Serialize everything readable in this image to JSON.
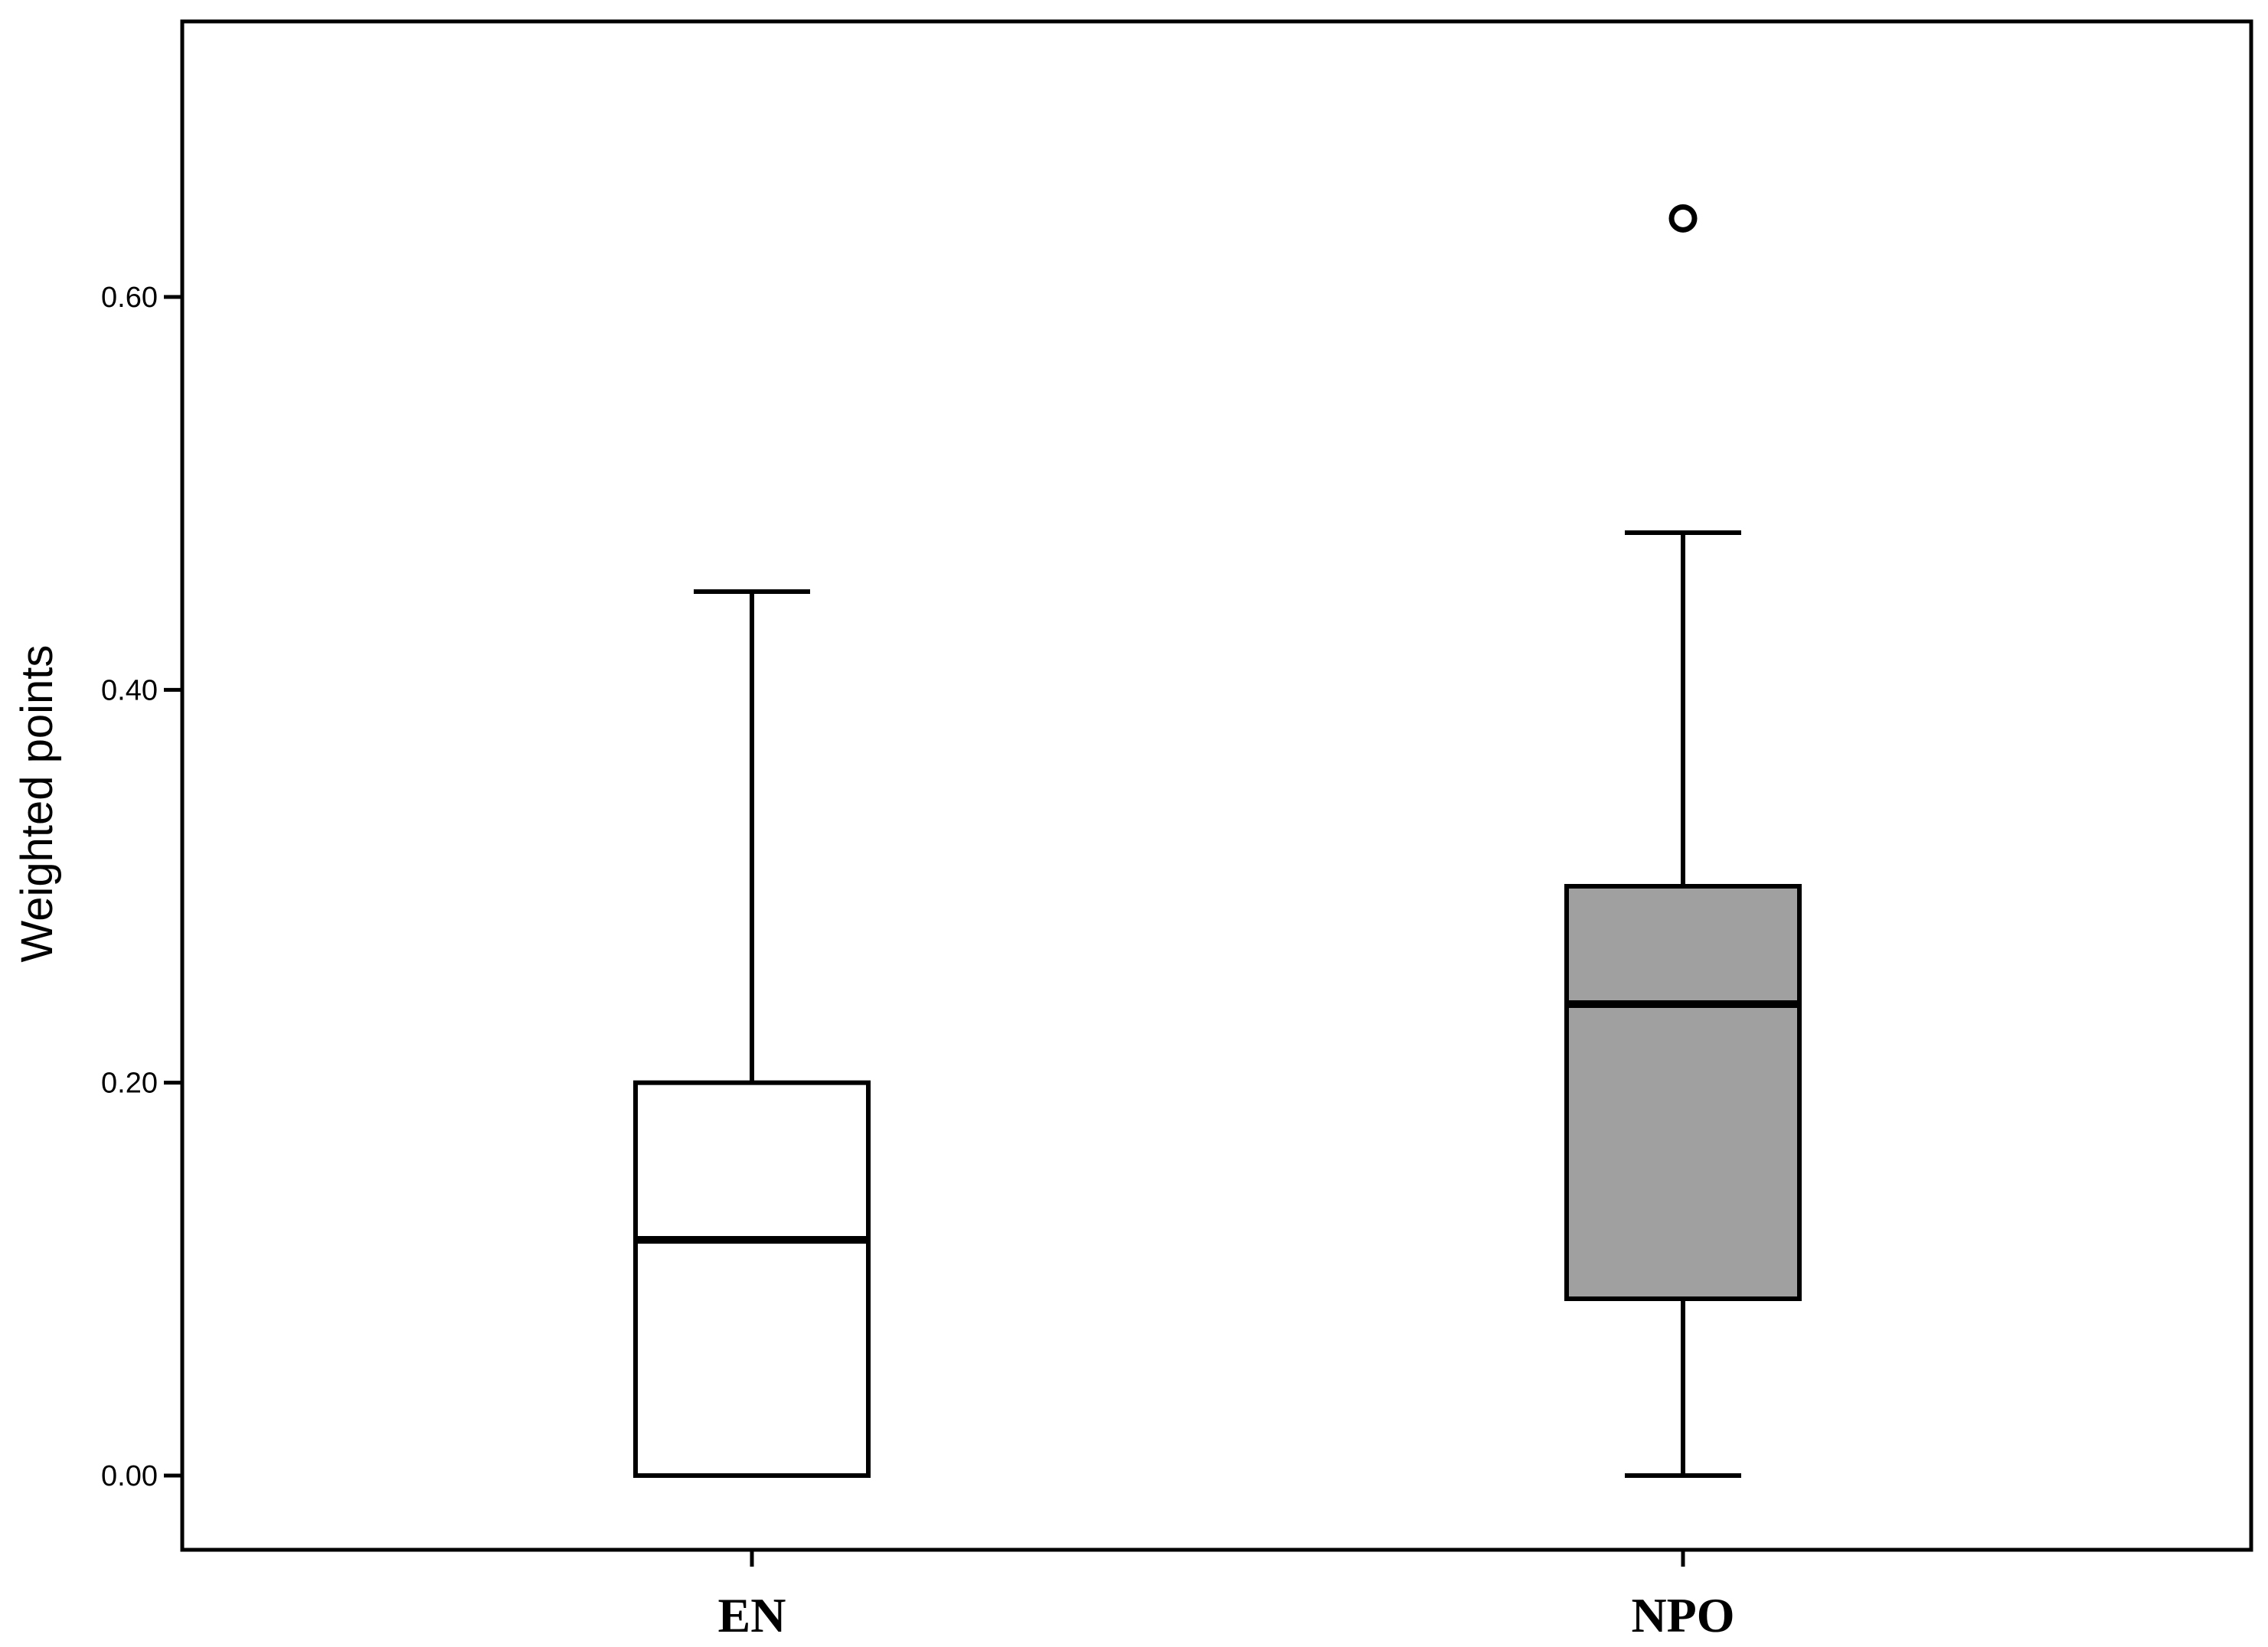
{
  "chart_data": {
    "type": "boxplot",
    "ylabel": "Weighted points",
    "xlabel": "",
    "ylim": [
      -0.04,
      0.74
    ],
    "yticks": [
      0.0,
      0.2,
      0.4,
      0.6
    ],
    "ytick_labels": [
      "0.00",
      "0.20",
      "0.40",
      "0.60"
    ],
    "grid": false,
    "categories": [
      "EN",
      "NPO"
    ],
    "boxes": [
      {
        "category": "EN",
        "whisker_low": 0.0,
        "q1": 0.0,
        "median": 0.12,
        "q3": 0.2,
        "whisker_high": 0.45,
        "outliers": [],
        "fill": "#ffffff"
      },
      {
        "category": "NPO",
        "whisker_low": 0.0,
        "q1": 0.09,
        "median": 0.24,
        "q3": 0.3,
        "whisker_high": 0.48,
        "outliers": [
          0.64
        ],
        "fill": "#a0a0a0"
      }
    ]
  }
}
